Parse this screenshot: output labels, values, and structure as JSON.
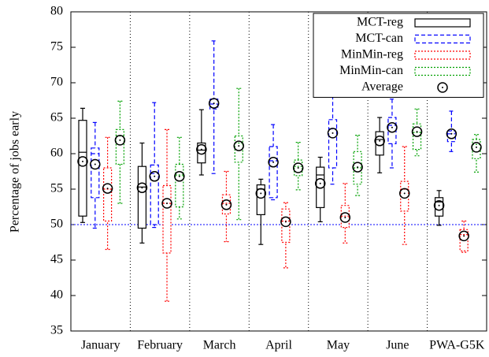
{
  "chart_data": {
    "type": "box",
    "y_label": "Percentage of jobs early",
    "categories": [
      "January",
      "February",
      "March",
      "April",
      "May",
      "June",
      "PWA-G5K"
    ],
    "ylim": [
      35,
      80
    ],
    "yticks": [
      35,
      40,
      45,
      50,
      55,
      60,
      65,
      70,
      75,
      80
    ],
    "reference_line": 50,
    "reference_color": "#0000ff",
    "legend_position": "top-right",
    "average_label": "Average",
    "series": [
      {
        "name": "MCT-reg",
        "color": "#000000",
        "dash": "solid",
        "min": [
          50.3,
          47.4,
          57.0,
          47.2,
          50.4,
          57.3,
          49.9
        ],
        "q1": [
          51.2,
          49.5,
          58.7,
          51.4,
          52.4,
          59.8,
          51.2
        ],
        "median": [
          60.2,
          55.3,
          60.5,
          55.0,
          57.0,
          62.0,
          53.2
        ],
        "q3": [
          64.7,
          58.2,
          61.5,
          55.6,
          58.1,
          63.1,
          53.8
        ],
        "max": [
          66.4,
          61.5,
          66.2,
          56.4,
          59.5,
          65.1,
          54.8
        ],
        "mean": [
          58.9,
          55.2,
          60.6,
          54.4,
          55.8,
          61.8,
          52.7
        ]
      },
      {
        "name": "MCT-can",
        "color": "#0000ff",
        "dash": "dashed",
        "min": [
          49.5,
          49.6,
          57.2,
          53.5,
          55.7,
          58.0,
          60.3
        ],
        "q1": [
          53.8,
          50.0,
          66.3,
          53.8,
          58.0,
          61.4,
          61.7
        ],
        "median": [
          60.0,
          57.2,
          67.0,
          59.0,
          63.5,
          64.0,
          62.8
        ],
        "q3": [
          60.8,
          58.4,
          67.7,
          61.0,
          64.8,
          65.1,
          63.2
        ],
        "max": [
          64.4,
          67.2,
          75.9,
          64.1,
          68.2,
          67.7,
          66.0
        ],
        "mean": [
          58.5,
          56.8,
          67.1,
          58.8,
          62.9,
          63.7,
          62.8
        ]
      },
      {
        "name": "MinMin-reg",
        "color": "#ff0000",
        "dash": "dotted",
        "min": [
          46.5,
          39.2,
          47.6,
          43.9,
          47.4,
          47.2,
          46.1
        ],
        "q1": [
          50.5,
          46.0,
          51.5,
          47.5,
          49.6,
          51.9,
          46.3
        ],
        "median": [
          55.0,
          53.0,
          53.0,
          50.5,
          51.2,
          55.0,
          48.6
        ],
        "q3": [
          58.0,
          55.5,
          54.2,
          52.2,
          52.7,
          56.1,
          49.3
        ],
        "max": [
          62.3,
          63.4,
          57.5,
          53.1,
          55.8,
          61.0,
          50.5
        ],
        "mean": [
          55.1,
          53.0,
          52.8,
          50.4,
          51.0,
          54.4,
          48.4
        ]
      },
      {
        "name": "MinMin-can",
        "color": "#00a000",
        "dash": "dotted",
        "min": [
          53.0,
          50.8,
          50.7,
          54.9,
          54.1,
          59.7,
          57.4
        ],
        "q1": [
          58.5,
          52.5,
          58.8,
          56.9,
          55.7,
          60.6,
          59.3
        ],
        "median": [
          62.5,
          57.0,
          61.5,
          58.2,
          58.0,
          63.0,
          61.3
        ],
        "q3": [
          63.4,
          58.5,
          62.5,
          59.1,
          60.3,
          64.2,
          62.0
        ],
        "max": [
          67.4,
          62.3,
          69.2,
          61.6,
          62.6,
          66.3,
          62.7
        ],
        "mean": [
          61.9,
          56.8,
          61.1,
          58.0,
          58.1,
          63.1,
          60.9
        ]
      }
    ]
  }
}
